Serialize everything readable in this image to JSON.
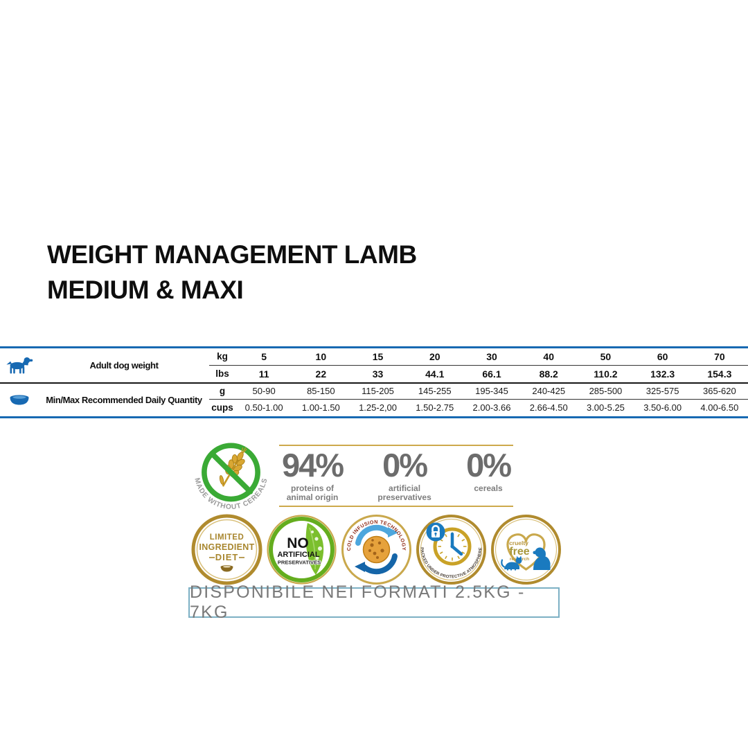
{
  "title": {
    "line1": "WEIGHT MANAGEMENT LAMB",
    "line2": "MEDIUM & MAXI"
  },
  "feeding_table": {
    "groups": [
      {
        "icon": "dog-icon",
        "label": "Adult dog weight",
        "rows": [
          {
            "unit": "kg",
            "values": [
              "5",
              "10",
              "15",
              "20",
              "30",
              "40",
              "50",
              "60",
              "70"
            ]
          },
          {
            "unit": "lbs",
            "values": [
              "11",
              "22",
              "33",
              "44.1",
              "66.1",
              "88.2",
              "110.2",
              "132.3",
              "154.3"
            ]
          }
        ]
      },
      {
        "icon": "bowl-icon",
        "label": "Min/Max Recommended Daily Quantity",
        "rows": [
          {
            "unit": "g",
            "values": [
              "50-90",
              "85-150",
              "115-205",
              "145-255",
              "195-345",
              "240-425",
              "285-500",
              "325-575",
              "365-620"
            ]
          },
          {
            "unit": "cups",
            "values": [
              "0.50-1.00",
              "1.00-1.50",
              "1.25-2,00",
              "1.50-2.75",
              "2.00-3.66",
              "2.66-4.50",
              "3.00-5.25",
              "3.50-6.00",
              "4.00-6.50"
            ]
          }
        ]
      }
    ]
  },
  "highlights": {
    "made_without_cereals": "MADE WITHOUT CEREALS",
    "stats": [
      {
        "value": "94%",
        "label_lines": [
          "proteins of",
          "animal origin"
        ]
      },
      {
        "value": "0%",
        "label_lines": [
          "artificial",
          "preservatives"
        ]
      },
      {
        "value": "0%",
        "label_lines": [
          "cereals"
        ]
      }
    ]
  },
  "badges": [
    {
      "name": "limited-ingredient-diet",
      "lines": [
        "LIMITED",
        "INGREDIENT",
        "DIET"
      ]
    },
    {
      "name": "no-artificial-preservatives",
      "lines": [
        "NO",
        "ARTIFICIAL",
        "PRESERVATIVES"
      ]
    },
    {
      "name": "cold-infusion-technology",
      "text": "COLD INFUSION TECHNOLOGY"
    },
    {
      "name": "packed-under-protective-atmosphere",
      "text": "PACKED UNDER PROTECTIVE ATMOSPHERE"
    },
    {
      "name": "cruelty-free-research",
      "lines": [
        "cruelty",
        "free",
        "research"
      ]
    }
  ],
  "availability": {
    "text": "DISPONIBILE NEI FORMATI 2.5KG - 7KG"
  },
  "colors": {
    "accent_blue": "#1769b2",
    "gold": "#c9a84c",
    "green": "#3aaa35",
    "stat_gray": "#6c6c6c",
    "box_border": "#7cb0c4"
  }
}
